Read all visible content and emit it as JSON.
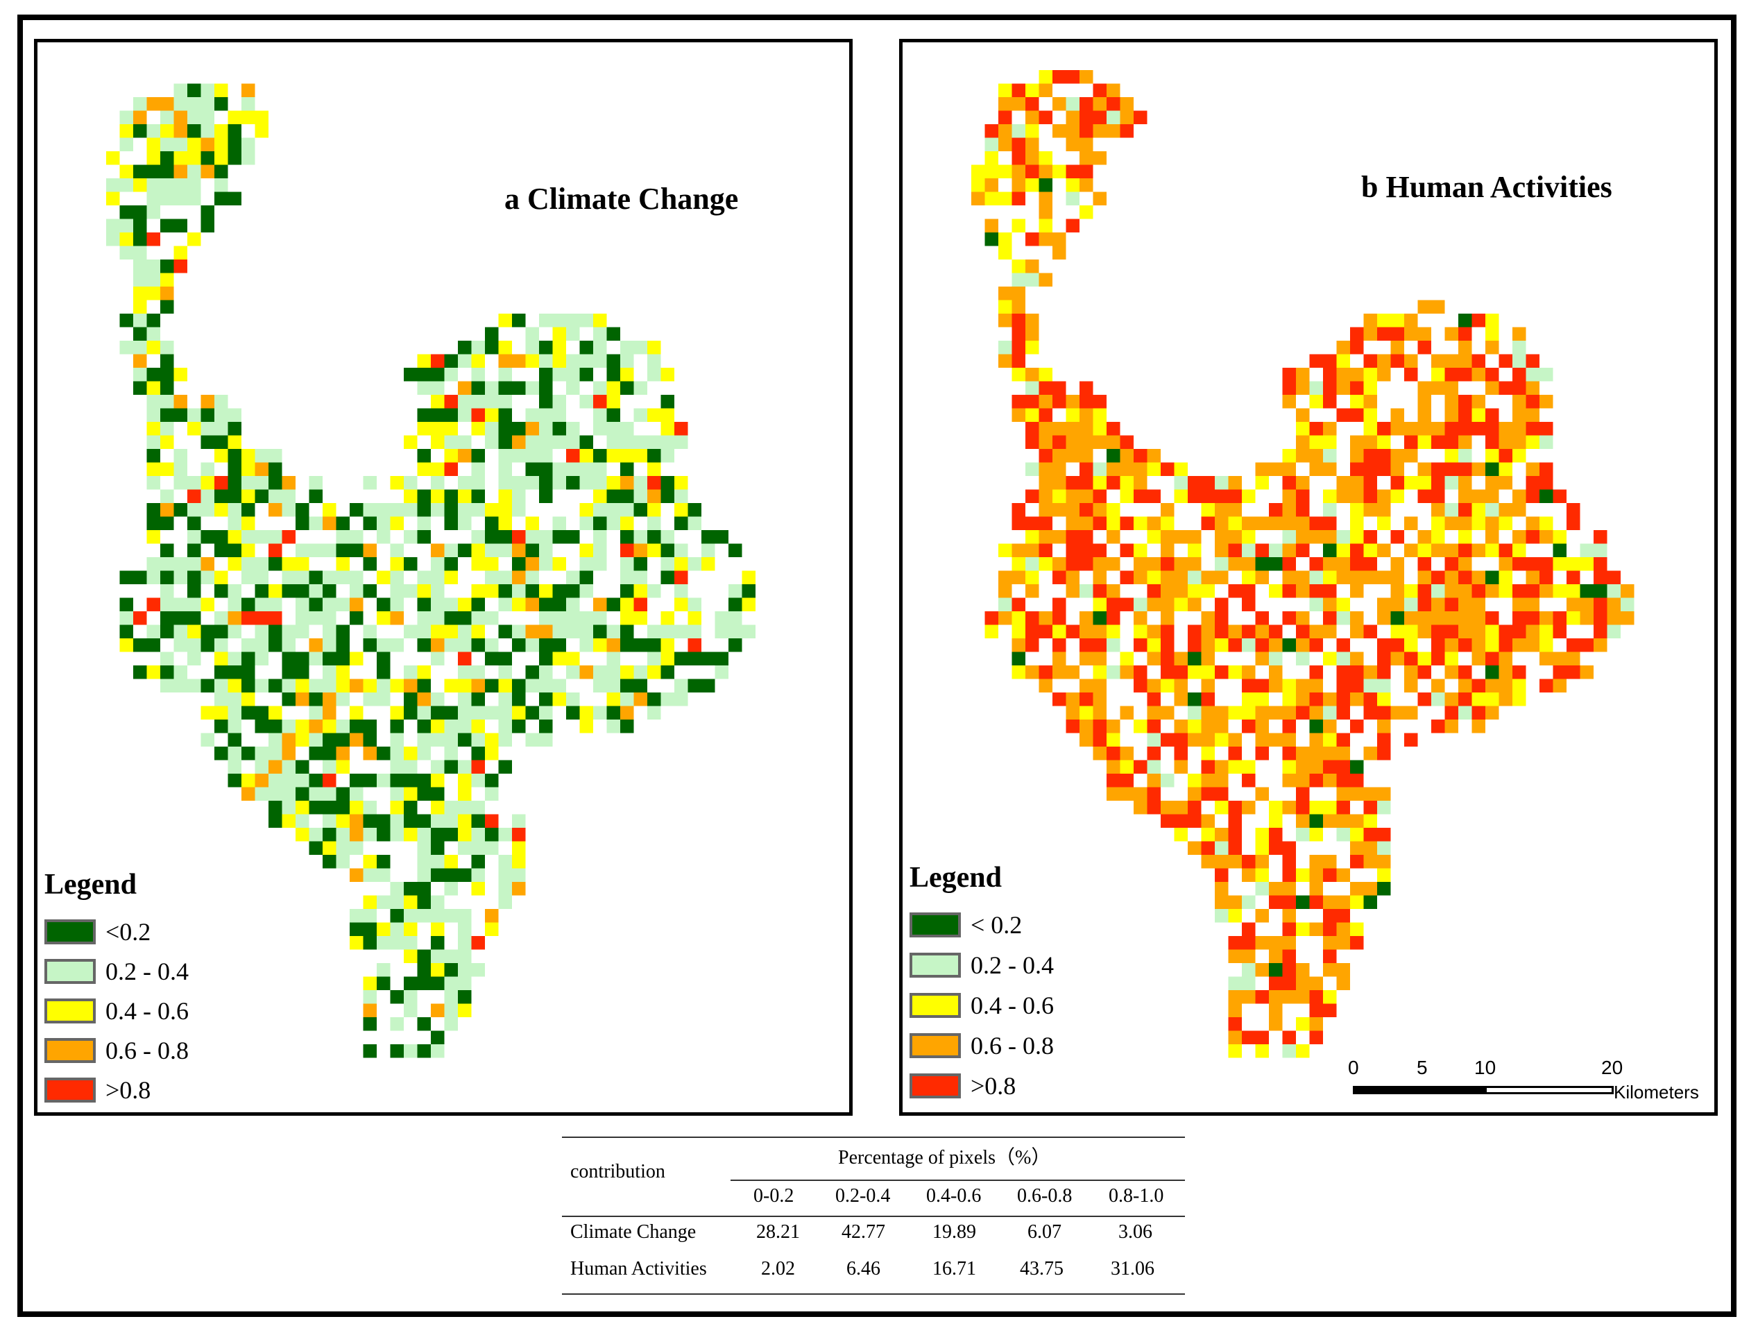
{
  "colors": {
    "lt_0_2": "#006400",
    "r_0_2_0_4": "#c6f5c6",
    "r_0_4_0_6": "#ffff00",
    "r_0_6_0_8": "#ffa500",
    "gt_0_8": "#ff2a00"
  },
  "panel_a": {
    "title": "a Climate Change",
    "legend_title": "Legend",
    "legend": [
      {
        "label": "<0.2",
        "color": "#006400"
      },
      {
        "label": "0.2 - 0.4",
        "color": "#c6f5c6"
      },
      {
        "label": "0.4 - 0.6",
        "color": "#ffff00"
      },
      {
        "label": "0.6 - 0.8",
        "color": "#ffa500"
      },
      {
        "label": ">0.8",
        "color": "#ff2a00"
      }
    ],
    "class_shares_percent": [
      28.21,
      42.77,
      19.89,
      6.07,
      3.06
    ]
  },
  "panel_b": {
    "title": "b Human Activities",
    "legend_title": "Legend",
    "legend": [
      {
        "label": "< 0.2",
        "color": "#006400"
      },
      {
        "label": "0.2 - 0.4",
        "color": "#c6f5c6"
      },
      {
        "label": "0.4 - 0.6",
        "color": "#ffff00"
      },
      {
        "label": "0.6 - 0.8",
        "color": "#ffa500"
      },
      {
        "label": ">0.8",
        "color": "#ff2a00"
      }
    ],
    "class_shares_percent": [
      2.02,
      6.46,
      16.71,
      43.75,
      31.06
    ],
    "scalebar": {
      "ticks": [
        "0",
        "5",
        "10",
        "20"
      ],
      "unit": "Kilometers"
    }
  },
  "table": {
    "row_header": "contribution",
    "group_header": "Percentage of pixels（%）",
    "columns": [
      "0-0.2",
      "0.2-0.4",
      "0.4-0.6",
      "0.6-0.8",
      "0.8-1.0"
    ],
    "rows": [
      {
        "label": "Climate Change",
        "values": [
          "28.21",
          "42.77",
          "19.89",
          "6.07",
          "3.06"
        ]
      },
      {
        "label": "Human Activities",
        "values": [
          "2.02",
          "6.46",
          "16.71",
          "43.75",
          "31.06"
        ]
      }
    ]
  }
}
